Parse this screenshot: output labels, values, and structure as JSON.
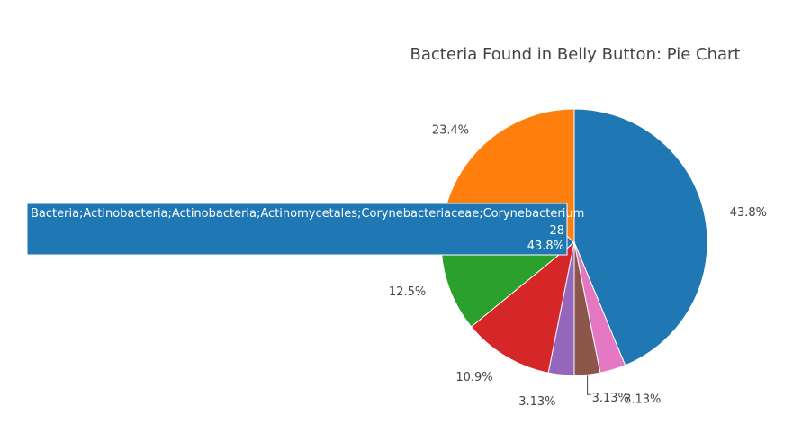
{
  "chart_data": {
    "type": "pie",
    "title": "Bacteria Found in Belly Button: Pie Chart",
    "slices": [
      {
        "value": 28,
        "percent_label": "43.8%",
        "color": "#1f77b4"
      },
      {
        "value": 2,
        "percent_label": "3.13%",
        "color": "#e377c2"
      },
      {
        "value": 2,
        "percent_label": "3.13%",
        "color": "#8c564b"
      },
      {
        "value": 2,
        "percent_label": "3.13%",
        "color": "#9467bd"
      },
      {
        "value": 7,
        "percent_label": "10.9%",
        "color": "#d62728"
      },
      {
        "value": 8,
        "percent_label": "12.5%",
        "color": "#2ca02c"
      },
      {
        "value": 15,
        "percent_label": "23.4%",
        "color": "#ff7f0e"
      }
    ],
    "legend": "none",
    "tooltip": {
      "slice_index": 0,
      "name": "Bacteria;Actinobacteria;Actinobacteria;Actinomycetales;Corynebacteriaceae;Corynebacterium",
      "value": "28",
      "percent": "43.8%",
      "color": "#1f77b4"
    }
  }
}
